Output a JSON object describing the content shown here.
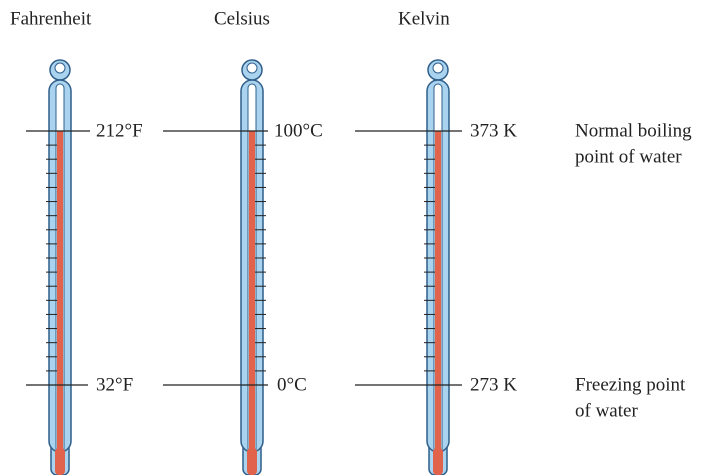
{
  "scales": [
    {
      "name": "Fahrenheit",
      "boiling": "212°F",
      "freezing": "32°F"
    },
    {
      "name": "Celsius",
      "boiling": "100°C",
      "freezing": "0°C"
    },
    {
      "name": "Kelvin",
      "boiling": "373 K",
      "freezing": "273 K"
    }
  ],
  "boiling_note": [
    "Normal boiling",
    "point of water"
  ],
  "freezing_note": [
    "Freezing point",
    "of water"
  ]
}
